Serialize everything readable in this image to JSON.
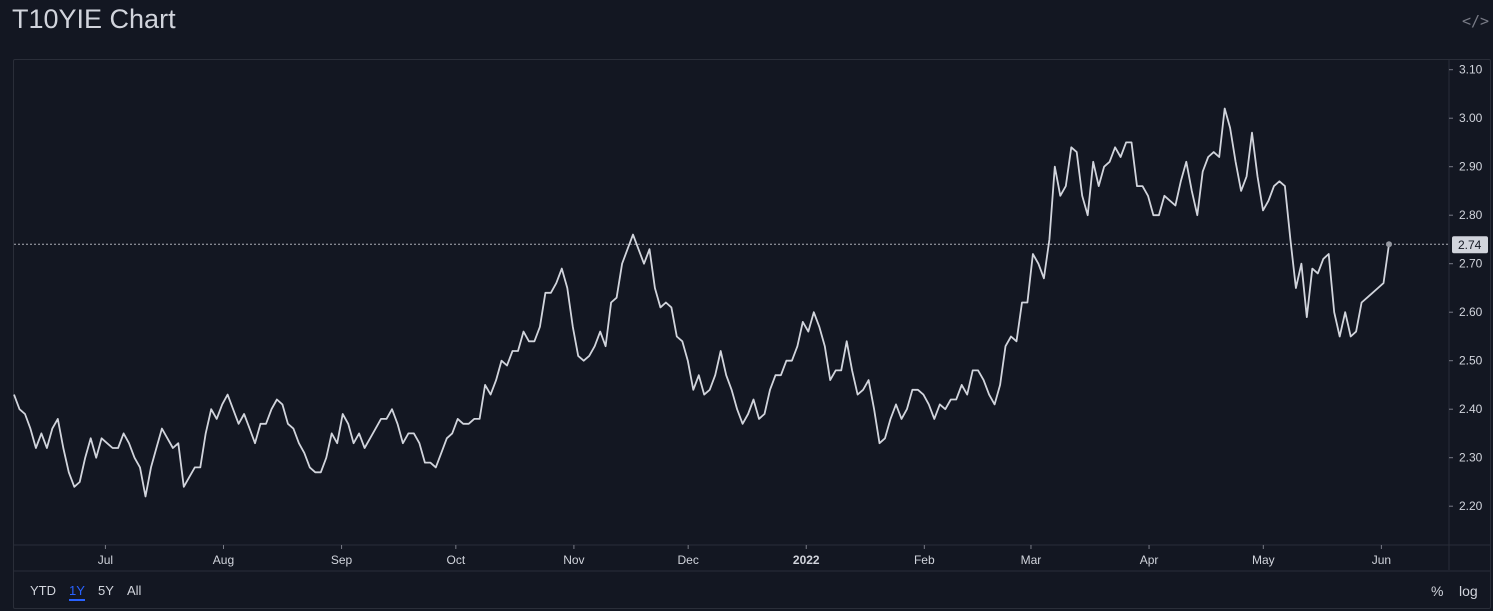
{
  "header": {
    "title": "T10YIE Chart",
    "embed_icon": "code-icon",
    "embed_label": "</>"
  },
  "toolbar": {
    "ranges": [
      {
        "label": "YTD",
        "active": false
      },
      {
        "label": "1Y",
        "active": true
      },
      {
        "label": "5Y",
        "active": false
      },
      {
        "label": "All",
        "active": false
      }
    ],
    "percent_label": "%",
    "log_label": "log"
  },
  "colors": {
    "background": "#131722",
    "line": "#d1d4dc",
    "grid": "#2a2e39",
    "text": "#d1d4dc",
    "active": "#2962ff"
  },
  "chart_data": {
    "type": "line",
    "title": "T10YIE Chart",
    "x_start": "2021-06-07",
    "x_end": "2022-06-03",
    "x_ticks": [
      {
        "date": "2021-07-01",
        "label": "Jul"
      },
      {
        "date": "2021-08-01",
        "label": "Aug"
      },
      {
        "date": "2021-09-01",
        "label": "Sep"
      },
      {
        "date": "2021-10-01",
        "label": "Oct"
      },
      {
        "date": "2021-11-01",
        "label": "Nov"
      },
      {
        "date": "2021-12-01",
        "label": "Dec"
      },
      {
        "date": "2022-01-01",
        "label": "2022",
        "bold": true
      },
      {
        "date": "2022-02-01",
        "label": "Feb"
      },
      {
        "date": "2022-03-01",
        "label": "Mar"
      },
      {
        "date": "2022-04-01",
        "label": "Apr"
      },
      {
        "date": "2022-05-01",
        "label": "May"
      },
      {
        "date": "2022-06-01",
        "label": "Jun"
      }
    ],
    "y_ticks": [
      "2.20",
      "2.30",
      "2.40",
      "2.50",
      "2.60",
      "2.70",
      "2.80",
      "2.90",
      "3.00",
      "3.10"
    ],
    "ylim": [
      2.12,
      3.12
    ],
    "last_value": 2.74,
    "last_label": "2.74",
    "series": [
      {
        "values": [
          [
            0,
            2.43
          ],
          [
            2,
            2.4
          ],
          [
            4,
            2.39
          ],
          [
            6,
            2.36
          ],
          [
            8,
            2.32
          ],
          [
            10,
            2.35
          ],
          [
            12,
            2.32
          ],
          [
            14,
            2.36
          ],
          [
            16,
            2.38
          ],
          [
            18,
            2.32
          ],
          [
            20,
            2.27
          ],
          [
            22,
            2.24
          ],
          [
            24,
            2.25
          ],
          [
            26,
            2.3
          ],
          [
            28,
            2.34
          ],
          [
            30,
            2.3
          ],
          [
            32,
            2.34
          ],
          [
            34,
            2.33
          ],
          [
            36,
            2.32
          ],
          [
            38,
            2.32
          ],
          [
            40,
            2.35
          ],
          [
            42,
            2.33
          ],
          [
            44,
            2.3
          ],
          [
            46,
            2.28
          ],
          [
            48,
            2.22
          ],
          [
            50,
            2.28
          ],
          [
            52,
            2.32
          ],
          [
            54,
            2.36
          ],
          [
            56,
            2.34
          ],
          [
            58,
            2.32
          ],
          [
            60,
            2.33
          ],
          [
            62,
            2.24
          ],
          [
            64,
            2.26
          ],
          [
            66,
            2.28
          ],
          [
            68,
            2.28
          ],
          [
            70,
            2.35
          ],
          [
            72,
            2.4
          ],
          [
            74,
            2.38
          ],
          [
            76,
            2.41
          ],
          [
            78,
            2.43
          ],
          [
            80,
            2.4
          ],
          [
            82,
            2.37
          ],
          [
            84,
            2.39
          ],
          [
            86,
            2.36
          ],
          [
            88,
            2.33
          ],
          [
            90,
            2.37
          ],
          [
            92,
            2.37
          ],
          [
            94,
            2.4
          ],
          [
            96,
            2.42
          ],
          [
            98,
            2.41
          ],
          [
            100,
            2.37
          ],
          [
            102,
            2.36
          ],
          [
            104,
            2.33
          ],
          [
            106,
            2.31
          ],
          [
            108,
            2.28
          ],
          [
            110,
            2.27
          ],
          [
            112,
            2.27
          ],
          [
            114,
            2.3
          ],
          [
            116,
            2.35
          ],
          [
            118,
            2.33
          ],
          [
            120,
            2.39
          ],
          [
            122,
            2.37
          ],
          [
            124,
            2.33
          ],
          [
            126,
            2.35
          ],
          [
            128,
            2.32
          ],
          [
            130,
            2.34
          ],
          [
            132,
            2.36
          ],
          [
            134,
            2.38
          ],
          [
            136,
            2.38
          ],
          [
            138,
            2.4
          ],
          [
            140,
            2.37
          ],
          [
            142,
            2.33
          ],
          [
            144,
            2.35
          ],
          [
            146,
            2.35
          ],
          [
            148,
            2.33
          ],
          [
            150,
            2.29
          ],
          [
            152,
            2.29
          ],
          [
            154,
            2.28
          ],
          [
            156,
            2.31
          ],
          [
            158,
            2.34
          ],
          [
            160,
            2.35
          ],
          [
            162,
            2.38
          ],
          [
            164,
            2.37
          ],
          [
            166,
            2.37
          ],
          [
            168,
            2.38
          ],
          [
            170,
            2.38
          ],
          [
            172,
            2.45
          ],
          [
            174,
            2.43
          ],
          [
            176,
            2.46
          ],
          [
            178,
            2.5
          ],
          [
            180,
            2.49
          ],
          [
            182,
            2.52
          ],
          [
            184,
            2.52
          ],
          [
            186,
            2.56
          ],
          [
            188,
            2.54
          ],
          [
            190,
            2.54
          ],
          [
            192,
            2.57
          ],
          [
            194,
            2.64
          ],
          [
            196,
            2.64
          ],
          [
            198,
            2.66
          ],
          [
            200,
            2.69
          ],
          [
            202,
            2.65
          ],
          [
            204,
            2.57
          ],
          [
            206,
            2.51
          ],
          [
            208,
            2.5
          ],
          [
            210,
            2.51
          ],
          [
            212,
            2.53
          ],
          [
            214,
            2.56
          ],
          [
            216,
            2.53
          ],
          [
            218,
            2.62
          ],
          [
            220,
            2.63
          ],
          [
            222,
            2.7
          ],
          [
            224,
            2.73
          ],
          [
            226,
            2.76
          ],
          [
            228,
            2.73
          ],
          [
            230,
            2.7
          ],
          [
            232,
            2.73
          ],
          [
            234,
            2.65
          ],
          [
            236,
            2.61
          ],
          [
            238,
            2.62
          ],
          [
            240,
            2.61
          ],
          [
            242,
            2.55
          ],
          [
            244,
            2.54
          ],
          [
            246,
            2.5
          ],
          [
            248,
            2.44
          ],
          [
            250,
            2.47
          ],
          [
            252,
            2.43
          ],
          [
            254,
            2.44
          ],
          [
            256,
            2.47
          ],
          [
            258,
            2.52
          ],
          [
            260,
            2.47
          ],
          [
            262,
            2.44
          ],
          [
            264,
            2.4
          ],
          [
            266,
            2.37
          ],
          [
            268,
            2.39
          ],
          [
            270,
            2.42
          ],
          [
            272,
            2.38
          ],
          [
            274,
            2.39
          ],
          [
            276,
            2.44
          ],
          [
            278,
            2.47
          ],
          [
            280,
            2.47
          ],
          [
            282,
            2.5
          ],
          [
            284,
            2.5
          ],
          [
            286,
            2.53
          ],
          [
            288,
            2.58
          ],
          [
            290,
            2.56
          ],
          [
            292,
            2.6
          ],
          [
            294,
            2.57
          ],
          [
            296,
            2.53
          ],
          [
            298,
            2.46
          ],
          [
            300,
            2.48
          ],
          [
            302,
            2.48
          ],
          [
            304,
            2.54
          ],
          [
            306,
            2.48
          ],
          [
            308,
            2.43
          ],
          [
            310,
            2.44
          ],
          [
            312,
            2.46
          ],
          [
            314,
            2.4
          ],
          [
            316,
            2.33
          ],
          [
            318,
            2.34
          ],
          [
            320,
            2.38
          ],
          [
            322,
            2.41
          ],
          [
            324,
            2.38
          ],
          [
            326,
            2.4
          ],
          [
            328,
            2.44
          ],
          [
            330,
            2.44
          ],
          [
            332,
            2.43
          ],
          [
            334,
            2.41
          ],
          [
            336,
            2.38
          ],
          [
            338,
            2.41
          ],
          [
            340,
            2.4
          ],
          [
            342,
            2.42
          ],
          [
            344,
            2.42
          ],
          [
            346,
            2.45
          ],
          [
            348,
            2.43
          ],
          [
            350,
            2.48
          ],
          [
            352,
            2.48
          ],
          [
            354,
            2.46
          ],
          [
            356,
            2.43
          ],
          [
            358,
            2.41
          ],
          [
            360,
            2.45
          ],
          [
            362,
            2.53
          ],
          [
            364,
            2.55
          ],
          [
            366,
            2.54
          ],
          [
            368,
            2.62
          ],
          [
            370,
            2.62
          ],
          [
            372,
            2.72
          ],
          [
            374,
            2.7
          ],
          [
            376,
            2.67
          ],
          [
            378,
            2.75
          ],
          [
            380,
            2.9
          ],
          [
            382,
            2.84
          ],
          [
            384,
            2.86
          ],
          [
            386,
            2.94
          ],
          [
            388,
            2.93
          ],
          [
            390,
            2.84
          ],
          [
            392,
            2.8
          ],
          [
            394,
            2.91
          ],
          [
            396,
            2.86
          ],
          [
            398,
            2.9
          ],
          [
            400,
            2.91
          ],
          [
            402,
            2.94
          ],
          [
            404,
            2.92
          ],
          [
            406,
            2.95
          ],
          [
            408,
            2.95
          ],
          [
            410,
            2.86
          ],
          [
            412,
            2.86
          ],
          [
            414,
            2.84
          ],
          [
            416,
            2.8
          ],
          [
            418,
            2.8
          ],
          [
            420,
            2.84
          ],
          [
            422,
            2.83
          ],
          [
            424,
            2.82
          ],
          [
            426,
            2.87
          ],
          [
            428,
            2.91
          ],
          [
            430,
            2.85
          ],
          [
            432,
            2.8
          ],
          [
            434,
            2.89
          ],
          [
            436,
            2.92
          ],
          [
            438,
            2.93
          ],
          [
            440,
            2.92
          ],
          [
            442,
            3.02
          ],
          [
            444,
            2.98
          ],
          [
            446,
            2.91
          ],
          [
            448,
            2.85
          ],
          [
            450,
            2.88
          ],
          [
            452,
            2.97
          ],
          [
            454,
            2.88
          ],
          [
            456,
            2.81
          ],
          [
            458,
            2.83
          ],
          [
            460,
            2.86
          ],
          [
            462,
            2.87
          ],
          [
            464,
            2.86
          ],
          [
            466,
            2.75
          ],
          [
            468,
            2.65
          ],
          [
            470,
            2.7
          ],
          [
            472,
            2.59
          ],
          [
            474,
            2.69
          ],
          [
            476,
            2.68
          ],
          [
            478,
            2.71
          ],
          [
            480,
            2.72
          ],
          [
            482,
            2.6
          ],
          [
            484,
            2.55
          ],
          [
            486,
            2.6
          ],
          [
            488,
            2.55
          ],
          [
            490,
            2.56
          ],
          [
            492,
            2.62
          ],
          [
            494,
            2.63
          ],
          [
            496,
            2.64
          ],
          [
            498,
            2.65
          ],
          [
            500,
            2.66
          ],
          [
            502,
            2.74
          ]
        ]
      }
    ]
  }
}
